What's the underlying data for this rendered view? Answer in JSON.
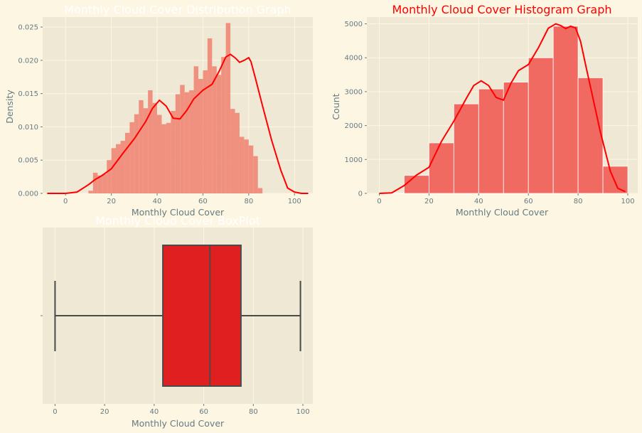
{
  "colors": {
    "figure_bg": "#fdf6e3",
    "axes_bg": "#eee8d5",
    "grid": "#fdf6e3",
    "text": "#657b83",
    "hist_bar": "#f08070",
    "hist2_bar": "#f06a62",
    "kde_line": "#ff0000",
    "box_fill": "#e01f20",
    "box_edge": "#4a4a4a",
    "title_white": "#ffffff",
    "title_red": "#ff0000"
  },
  "chart_data": [
    {
      "type": "histogram",
      "title": "Monthly Cloud Cover Distribution Graph",
      "xlabel": "Monthly Cloud Cover",
      "ylabel": "Density",
      "xlim": [
        -10,
        108
      ],
      "ylim": [
        0,
        0.0265
      ],
      "xticks": [
        0,
        20,
        40,
        60,
        80,
        100
      ],
      "yticks": [
        0.0,
        0.005,
        0.01,
        0.015,
        0.02,
        0.025
      ],
      "ytick_labels": [
        "0.000",
        "0.005",
        "0.010",
        "0.015",
        "0.020",
        "0.025"
      ],
      "grid": true,
      "bin_start": 0,
      "bin_width": 2,
      "densities": [
        0.0,
        0.0,
        0.0,
        0.0,
        0.0,
        0.0004,
        0.0031,
        0.0027,
        0.0029,
        0.005,
        0.0068,
        0.0074,
        0.0079,
        0.0091,
        0.0107,
        0.0119,
        0.014,
        0.0128,
        0.0155,
        0.0136,
        0.0118,
        0.0104,
        0.0106,
        0.0124,
        0.0149,
        0.0163,
        0.0152,
        0.0155,
        0.0191,
        0.0172,
        0.0185,
        0.0233,
        0.0191,
        0.0178,
        0.0205,
        0.0256,
        0.0127,
        0.0121,
        0.0085,
        0.0081,
        0.0072,
        0.0056,
        0.0008,
        0.0,
        0.0,
        0.0,
        0.0,
        0.0,
        0.0,
        0.0
      ],
      "kde": {
        "x": [
          -8,
          0,
          5,
          10,
          13,
          16,
          20,
          25,
          30,
          35,
          38,
          41,
          44,
          47,
          50,
          53,
          56,
          60,
          64,
          67,
          70,
          72,
          74,
          76,
          78,
          80,
          81,
          83,
          86,
          90,
          94,
          97,
          100,
          103,
          106
        ],
        "y": [
          0.0,
          0.0,
          0.0002,
          0.0013,
          0.0021,
          0.0027,
          0.0037,
          0.006,
          0.0082,
          0.0108,
          0.0128,
          0.014,
          0.0131,
          0.0113,
          0.0112,
          0.0125,
          0.0142,
          0.0155,
          0.0164,
          0.0183,
          0.0205,
          0.0209,
          0.0204,
          0.0197,
          0.02,
          0.0204,
          0.0198,
          0.0172,
          0.0132,
          0.008,
          0.0035,
          0.0008,
          0.0002,
          0.0,
          0.0
        ]
      }
    },
    {
      "type": "histogram",
      "title": "Monthly Cloud Cover Histogram Graph",
      "xlabel": "Monthly Cloud Cover",
      "ylabel": "Count",
      "xlim": [
        -5,
        104
      ],
      "ylim": [
        0,
        5200
      ],
      "xticks": [
        0,
        20,
        40,
        60,
        80,
        100
      ],
      "yticks": [
        0,
        1000,
        2000,
        3000,
        4000,
        5000
      ],
      "grid": true,
      "bins": [
        {
          "x0": 0,
          "x1": 10,
          "count": 10
        },
        {
          "x0": 10,
          "x1": 20,
          "count": 530
        },
        {
          "x0": 20,
          "x1": 30,
          "count": 1490
        },
        {
          "x0": 30,
          "x1": 40,
          "count": 2640
        },
        {
          "x0": 40,
          "x1": 50,
          "count": 3080
        },
        {
          "x0": 50,
          "x1": 60,
          "count": 3280
        },
        {
          "x0": 60,
          "x1": 70,
          "count": 4000
        },
        {
          "x0": 70,
          "x1": 80,
          "count": 4930
        },
        {
          "x0": 80,
          "x1": 90,
          "count": 3410
        },
        {
          "x0": 90,
          "x1": 100,
          "count": 800
        }
      ],
      "kde": {
        "x": [
          0,
          5,
          10,
          15,
          20,
          25,
          30,
          35,
          38,
          41,
          44,
          47,
          50,
          53,
          56,
          60,
          64,
          68,
          71,
          73,
          75,
          77,
          79,
          81,
          83,
          86,
          89,
          93,
          96,
          99
        ],
        "y": [
          0,
          15,
          230,
          540,
          770,
          1530,
          2130,
          2800,
          3180,
          3320,
          3180,
          2830,
          2750,
          3250,
          3620,
          3800,
          4290,
          4870,
          5000,
          4950,
          4860,
          4930,
          4880,
          4480,
          3800,
          2800,
          1800,
          650,
          150,
          50
        ]
      }
    },
    {
      "type": "boxplot",
      "title": "Monthly Cloud Cover BoxPlot",
      "xlabel": "Monthly Cloud Cover",
      "xlim": [
        -5,
        104
      ],
      "xticks": [
        0,
        20,
        40,
        60,
        80,
        100
      ],
      "grid": true,
      "whisker_low": 0,
      "q1": 43.5,
      "median": 62.5,
      "q3": 75,
      "whisker_high": 99
    }
  ]
}
